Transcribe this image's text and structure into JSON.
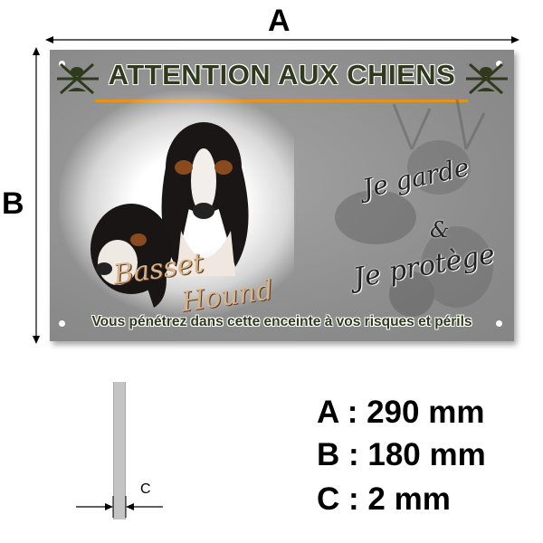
{
  "dimensions": {
    "a_label": "A",
    "b_label": "B",
    "c_label": "C"
  },
  "sign": {
    "title": "ATTENTION AUX CHIENS",
    "breed_line1": "Basset",
    "breed_line2": "Hound",
    "motto_line1": "Je garde",
    "motto_amp": "&",
    "motto_line2": "Je protège",
    "footer": "Vous pénétrez dans cette enceinte à vos risques et périls",
    "colors": {
      "title": "#2f3a1c",
      "rule": "#e8901a",
      "background": "#8e8e8e"
    }
  },
  "specs": [
    {
      "text": "A : 290 mm"
    },
    {
      "text": "B : 180 mm"
    },
    {
      "text": "C : 2 mm"
    }
  ]
}
